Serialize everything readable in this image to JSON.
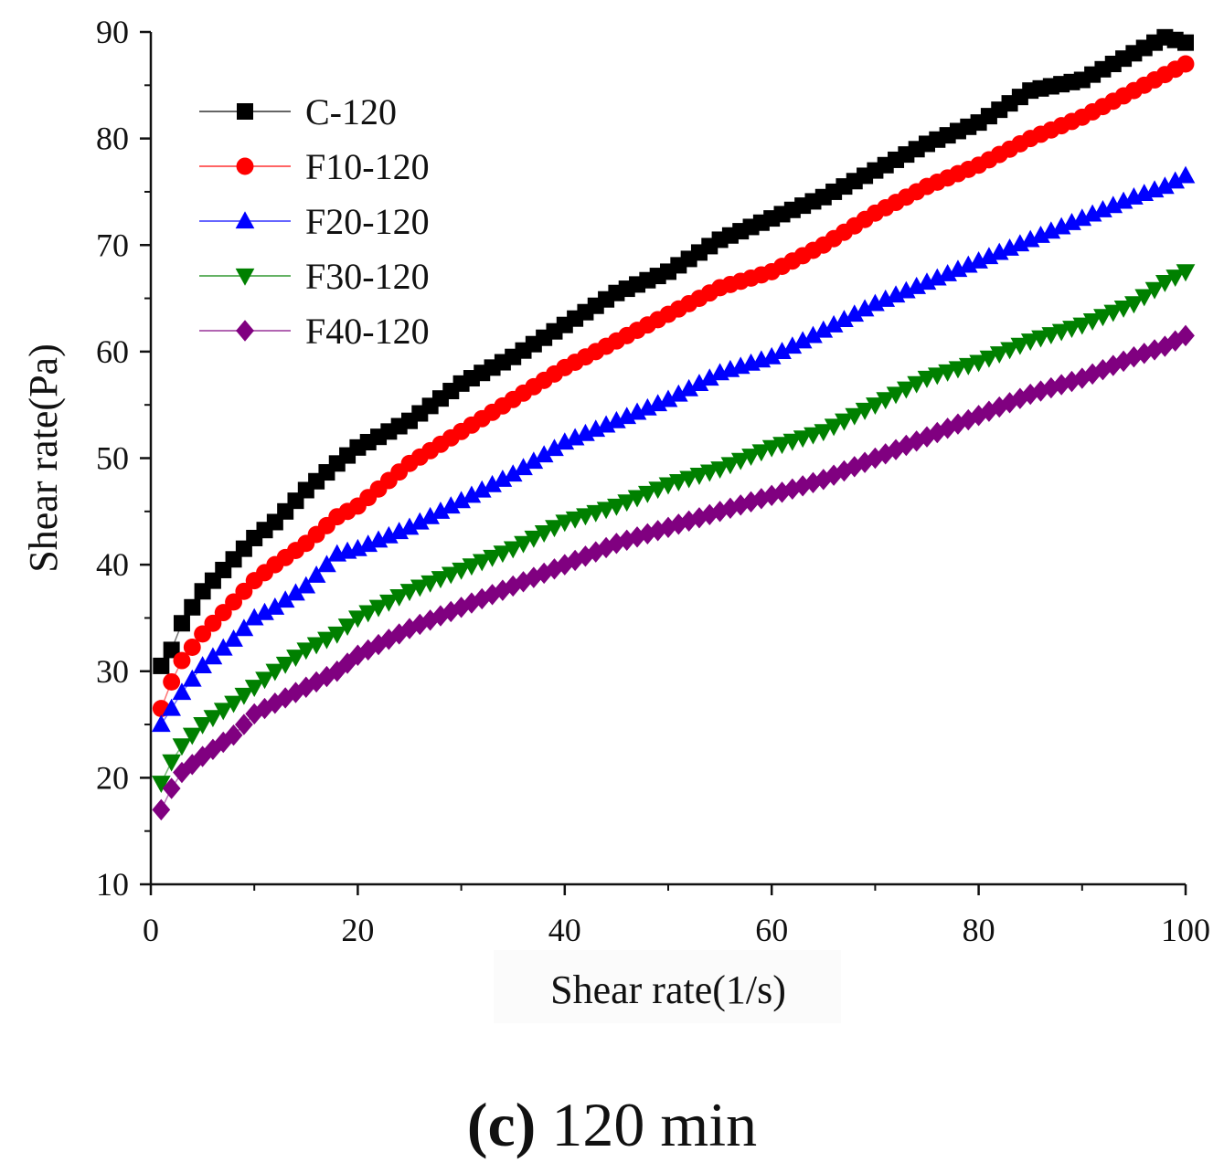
{
  "chart_data": {
    "type": "scatter",
    "title": "",
    "xlabel": "Shear rate(1/s)",
    "ylabel": "Shear rate(Pa)",
    "xlim": [
      0,
      100
    ],
    "ylim": [
      10,
      90
    ],
    "xticks": [
      "0",
      "20",
      "40",
      "60",
      "80",
      "100"
    ],
    "yticks": [
      "10",
      "20",
      "30",
      "40",
      "50",
      "60",
      "70",
      "80",
      "90"
    ],
    "legend_position": "top-left",
    "series": [
      {
        "name": "C-120",
        "color": "#000000",
        "marker": "square",
        "x": [
          1,
          2,
          3,
          5,
          8,
          10,
          12,
          15,
          18,
          20,
          25,
          30,
          35,
          40,
          45,
          50,
          55,
          60,
          65,
          70,
          75,
          80,
          85,
          90,
          95,
          98,
          100
        ],
        "y": [
          30.5,
          32,
          34.5,
          37.5,
          40.5,
          42.5,
          44,
          47,
          49.5,
          51,
          53.5,
          57,
          59.5,
          62.5,
          65.5,
          67.5,
          70.5,
          72.5,
          74.5,
          77,
          79.5,
          81.5,
          84.5,
          85.5,
          88,
          89.5,
          89
        ]
      },
      {
        "name": "F10-120",
        "color": "#ff0000",
        "marker": "circle",
        "x": [
          1,
          2,
          3,
          5,
          8,
          10,
          12,
          15,
          18,
          20,
          25,
          30,
          35,
          40,
          45,
          50,
          55,
          60,
          65,
          70,
          75,
          80,
          85,
          90,
          95,
          98,
          100
        ],
        "y": [
          26.5,
          29,
          31,
          33.5,
          36.5,
          38.5,
          40,
          42,
          44.5,
          45.5,
          49.5,
          52.5,
          55.5,
          58.5,
          61,
          63.5,
          66,
          67.5,
          70,
          73,
          75.5,
          77.5,
          80,
          82,
          84.5,
          86,
          87
        ]
      },
      {
        "name": "F20-120",
        "color": "#0000ff",
        "marker": "triangle-up",
        "x": [
          1,
          2,
          3,
          5,
          8,
          10,
          12,
          15,
          18,
          20,
          25,
          30,
          35,
          40,
          45,
          50,
          55,
          60,
          65,
          70,
          75,
          80,
          85,
          90,
          95,
          98,
          100
        ],
        "y": [
          25,
          26.5,
          28,
          30.5,
          33,
          35,
          36,
          38,
          41,
          41.5,
          43.5,
          46,
          48.5,
          51.5,
          53.5,
          55.5,
          58,
          59.5,
          62,
          64.5,
          66.5,
          68.5,
          70.5,
          72.5,
          74.5,
          75.5,
          76.5
        ]
      },
      {
        "name": "F30-120",
        "color": "#008000",
        "marker": "triangle-down",
        "x": [
          1,
          2,
          3,
          5,
          8,
          10,
          12,
          15,
          18,
          20,
          25,
          30,
          35,
          40,
          45,
          50,
          55,
          60,
          65,
          70,
          75,
          80,
          85,
          90,
          95,
          98,
          100
        ],
        "y": [
          19.5,
          21.5,
          23,
          25,
          27,
          28.5,
          30,
          32,
          33.5,
          35,
          37.5,
          39.5,
          41.5,
          44,
          45.5,
          47.5,
          49,
          51,
          52.5,
          55,
          57.5,
          59,
          61,
          62.5,
          64.5,
          66.5,
          67.5
        ]
      },
      {
        "name": "F40-120",
        "color": "#800080",
        "marker": "diamond",
        "x": [
          1,
          2,
          3,
          5,
          8,
          10,
          12,
          15,
          18,
          20,
          25,
          30,
          35,
          40,
          45,
          50,
          55,
          60,
          65,
          70,
          75,
          80,
          85,
          90,
          95,
          98,
          100
        ],
        "y": [
          17,
          19,
          20.5,
          22,
          24,
          26,
          27,
          28.5,
          30,
          31.5,
          34,
          36,
          38,
          40,
          42,
          43.5,
          45,
          46.5,
          48,
          50,
          52,
          54,
          56,
          57.5,
          59.5,
          60.5,
          61.5
        ]
      }
    ]
  },
  "caption": {
    "label": "(c)",
    "text": " 120 min"
  }
}
